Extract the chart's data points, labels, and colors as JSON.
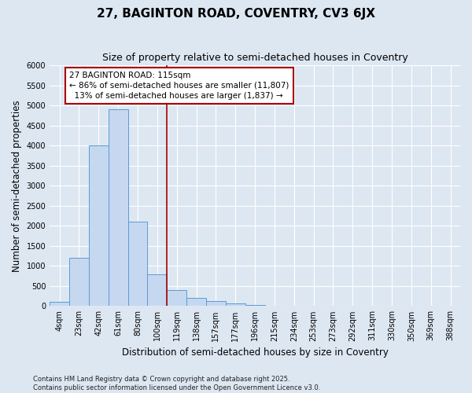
{
  "title": "27, BAGINTON ROAD, COVENTRY, CV3 6JX",
  "subtitle": "Size of property relative to semi-detached houses in Coventry",
  "xlabel": "Distribution of semi-detached houses by size in Coventry",
  "ylabel": "Number of semi-detached properties",
  "categories": [
    "4sqm",
    "23sqm",
    "42sqm",
    "61sqm",
    "80sqm",
    "100sqm",
    "119sqm",
    "138sqm",
    "157sqm",
    "177sqm",
    "196sqm",
    "215sqm",
    "234sqm",
    "253sqm",
    "273sqm",
    "292sqm",
    "311sqm",
    "330sqm",
    "350sqm",
    "369sqm",
    "388sqm"
  ],
  "values": [
    100,
    1200,
    4000,
    4900,
    2100,
    800,
    400,
    200,
    130,
    70,
    30,
    5,
    5,
    5,
    0,
    0,
    0,
    0,
    0,
    0,
    0
  ],
  "bar_color": "#c5d8f0",
  "bar_edge_color": "#5b9bd5",
  "background_color": "#dde7f2",
  "grid_color": "#ffffff",
  "pct_smaller": 86,
  "pct_larger": 13,
  "n_smaller": 11807,
  "n_larger": 1837,
  "vline_color": "#aa0000",
  "annotation_box_color": "#aa0000",
  "ylim": [
    0,
    6000
  ],
  "yticks": [
    0,
    500,
    1000,
    1500,
    2000,
    2500,
    3000,
    3500,
    4000,
    4500,
    5000,
    5500,
    6000
  ],
  "footnote": "Contains HM Land Registry data © Crown copyright and database right 2025.\nContains public sector information licensed under the Open Government Licence v3.0.",
  "title_fontsize": 11,
  "subtitle_fontsize": 9,
  "axis_label_fontsize": 8.5,
  "tick_fontsize": 7,
  "annotation_fontsize": 7.5
}
